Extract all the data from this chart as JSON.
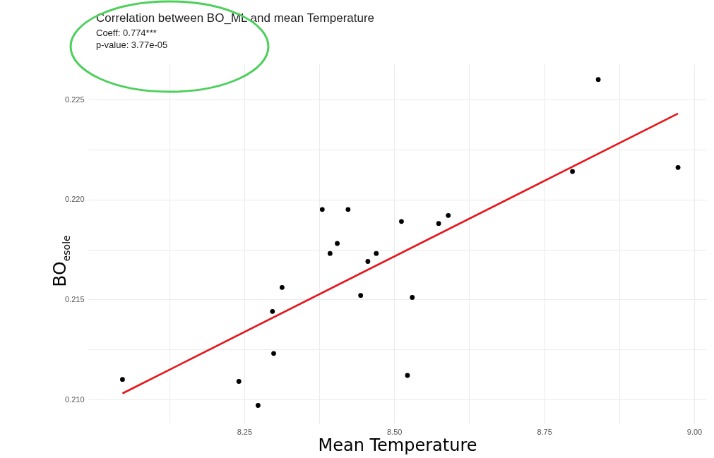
{
  "chart_data": {
    "type": "scatter",
    "title": "Correlation between BO_ML  and mean Temperature",
    "annotations": [
      "Coeff: 0.774***",
      "p-value: 3.77e-05"
    ],
    "xlabel": "Mean Temperature",
    "ylabel": "BO$_{esole}$",
    "xlim": [
      7.99,
      9.02
    ],
    "ylim": [
      0.2088,
      0.2268
    ],
    "xticks": [
      {
        "value": 8.125,
        "label": null
      },
      8.25,
      {
        "value": 8.375,
        "label": null
      },
      {
        "value": 8.5,
        "label": "8.50"
      },
      {
        "value": 8.625,
        "label": null
      },
      8.75,
      {
        "value": 8.875,
        "label": null
      },
      {
        "value": 9,
        "label": "9.00"
      }
    ],
    "yticks": [
      {
        "value": 0.21,
        "label": "0.210"
      },
      {
        "value": 0.2125,
        "label": null
      },
      0.215,
      {
        "value": 0.2175,
        "label": null
      },
      {
        "value": 0.22,
        "label": "0.220"
      },
      {
        "value": 0.2225,
        "label": null
      },
      0.225
    ],
    "grid": true,
    "series": [
      {
        "color": "#000000",
        "marker": "circle",
        "x": [
          8.047,
          8.241,
          8.273,
          8.297,
          8.299,
          8.313,
          8.38,
          8.393,
          8.405,
          8.423,
          8.444,
          8.456,
          8.47,
          8.512,
          8.522,
          8.53,
          8.574,
          8.59,
          8.797,
          8.84,
          8.973
        ],
        "values": [
          0.211,
          0.2109,
          0.2097,
          0.2144,
          0.2123,
          0.2156,
          0.2195,
          0.2173,
          0.2178,
          0.2195,
          0.2152,
          0.2169,
          0.2173,
          0.2189,
          0.2112,
          0.2151,
          0.2188,
          0.2192,
          0.2214,
          0.226,
          0.2216
        ]
      },
      {
        "type": "line",
        "color": "#e8141a",
        "x": [
          8.047,
          8.973
        ],
        "values": [
          0.2103,
          0.2243
        ]
      }
    ]
  }
}
